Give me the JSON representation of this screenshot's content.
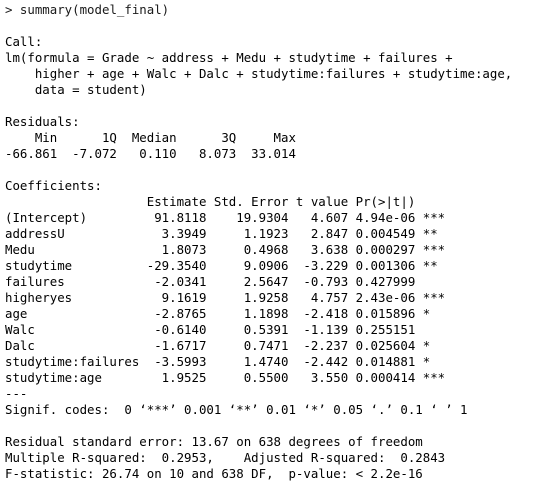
{
  "console": {
    "prompt": "> ",
    "command": "summary(model_final)",
    "call_header": "Call:",
    "call_lines": [
      "lm(formula = Grade ~ address + Medu + studytime + failures + ",
      "    higher + age + Walc + Dalc + studytime:failures + studytime:age, ",
      "    data = student)"
    ],
    "residuals_header": "Residuals:",
    "residuals_lines": [
      "    Min      1Q  Median      3Q     Max ",
      "-66.861  -7.072   0.110   8.073  33.014 "
    ],
    "coefficients_header": "Coefficients:",
    "coefficients_col_header": "                   Estimate Std. Error t value Pr(>|t|)    ",
    "coefficients_rows": [
      "(Intercept)         91.8118    19.9304   4.607 4.94e-06 ***",
      "addressU             3.3949     1.1923   2.847 0.004549 ** ",
      "Medu                 1.8073     0.4968   3.638 0.000297 ***",
      "studytime          -29.3540     9.0906  -3.229 0.001306 ** ",
      "failures            -2.0341     2.5647  -0.793 0.427999    ",
      "higheryes            9.1619     1.9258   4.757 2.43e-06 ***",
      "age                 -2.8765     1.1898  -2.418 0.015896 *  ",
      "Walc                -0.6140     0.5391  -1.139 0.255151    ",
      "Dalc                -1.6717     0.7471  -2.237 0.025604 *  ",
      "studytime:failures  -3.5993     1.4740  -2.442 0.014881 *  ",
      "studytime:age        1.9525     0.5500   3.550 0.000414 ***"
    ],
    "separator": "---",
    "signif_codes": "Signif. codes:  0 ‘***’ 0.001 ‘**’ 0.01 ‘*’ 0.05 ‘.’ 0.1 ‘ ’ 1",
    "residual_se": "Residual standard error: 13.67 on 638 degrees of freedom",
    "r_squared": "Multiple R-squared:  0.2953,\tAdjusted R-squared:  0.2843 ",
    "f_statistic": "F-statistic: 26.74 on 10 and 638 DF,  p-value: < 2.2e-16"
  }
}
